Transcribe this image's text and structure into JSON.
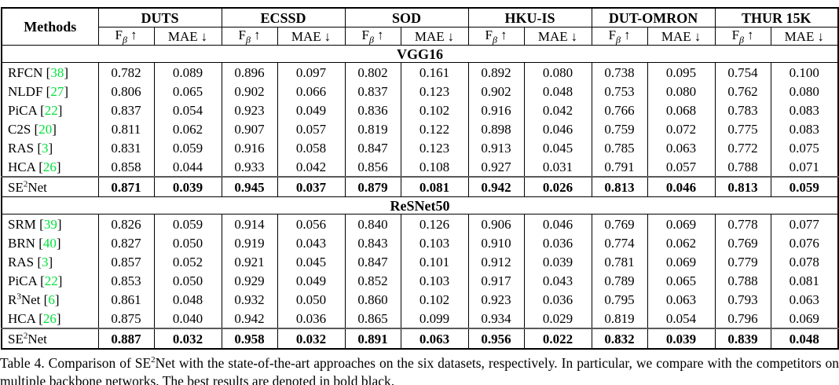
{
  "colors": {
    "citation_green": "#00e23c",
    "text": "#000000",
    "border": "#000000"
  },
  "table": {
    "methods_header": "Methods",
    "datasets": [
      "DUTS",
      "ECSSD",
      "SOD",
      "HKU-IS",
      "DUT-OMRON",
      "THUR 15K"
    ],
    "metric_f": {
      "base": "F",
      "sub": "β",
      "arrow": "↑"
    },
    "metric_mae": {
      "base": "MAE",
      "arrow": "↓"
    },
    "sections": [
      {
        "title": "VGG16",
        "rows": [
          {
            "method": {
              "pre": "RFCN",
              "sup": "",
              "post": "",
              "cite": "38"
            },
            "bold": false,
            "values": [
              "0.782",
              "0.089",
              "0.896",
              "0.097",
              "0.802",
              "0.161",
              "0.892",
              "0.080",
              "0.738",
              "0.095",
              "0.754",
              "0.100"
            ]
          },
          {
            "method": {
              "pre": "NLDF",
              "sup": "",
              "post": "",
              "cite": "27"
            },
            "bold": false,
            "values": [
              "0.806",
              "0.065",
              "0.902",
              "0.066",
              "0.837",
              "0.123",
              "0.902",
              "0.048",
              "0.753",
              "0.080",
              "0.762",
              "0.080"
            ]
          },
          {
            "method": {
              "pre": "PiCA",
              "sup": "",
              "post": "",
              "cite": "22"
            },
            "bold": false,
            "values": [
              "0.837",
              "0.054",
              "0.923",
              "0.049",
              "0.836",
              "0.102",
              "0.916",
              "0.042",
              "0.766",
              "0.068",
              "0.783",
              "0.083"
            ]
          },
          {
            "method": {
              "pre": "C2S",
              "sup": "",
              "post": "",
              "cite": "20"
            },
            "bold": false,
            "values": [
              "0.811",
              "0.062",
              "0.907",
              "0.057",
              "0.819",
              "0.122",
              "0.898",
              "0.046",
              "0.759",
              "0.072",
              "0.775",
              "0.083"
            ]
          },
          {
            "method": {
              "pre": "RAS",
              "sup": "",
              "post": "",
              "cite": "3"
            },
            "bold": false,
            "values": [
              "0.831",
              "0.059",
              "0.916",
              "0.058",
              "0.847",
              "0.123",
              "0.913",
              "0.045",
              "0.785",
              "0.063",
              "0.772",
              "0.075"
            ]
          },
          {
            "method": {
              "pre": "HCA",
              "sup": "",
              "post": "",
              "cite": "26"
            },
            "bold": false,
            "values": [
              "0.858",
              "0.044",
              "0.933",
              "0.042",
              "0.856",
              "0.108",
              "0.927",
              "0.031",
              "0.791",
              "0.057",
              "0.788",
              "0.071"
            ]
          },
          {
            "method": {
              "pre": "SE",
              "sup": "2",
              "post": "Net",
              "cite": ""
            },
            "bold": true,
            "values": [
              "0.871",
              "0.039",
              "0.945",
              "0.037",
              "0.879",
              "0.081",
              "0.942",
              "0.026",
              "0.813",
              "0.046",
              "0.813",
              "0.059"
            ]
          }
        ]
      },
      {
        "title": "ReSNet50",
        "rows": [
          {
            "method": {
              "pre": "SRM",
              "sup": "",
              "post": "",
              "cite": "39"
            },
            "bold": false,
            "values": [
              "0.826",
              "0.059",
              "0.914",
              "0.056",
              "0.840",
              "0.126",
              "0.906",
              "0.046",
              "0.769",
              "0.069",
              "0.778",
              "0.077"
            ]
          },
          {
            "method": {
              "pre": "BRN",
              "sup": "",
              "post": "",
              "cite": "40"
            },
            "bold": false,
            "values": [
              "0.827",
              "0.050",
              "0.919",
              "0.043",
              "0.843",
              "0.103",
              "0.910",
              "0.036",
              "0.774",
              "0.062",
              "0.769",
              "0.076"
            ]
          },
          {
            "method": {
              "pre": "RAS",
              "sup": "",
              "post": "",
              "cite": "3"
            },
            "bold": false,
            "values": [
              "0.857",
              "0.052",
              "0.921",
              "0.045",
              "0.847",
              "0.101",
              "0.912",
              "0.039",
              "0.781",
              "0.069",
              "0.779",
              "0.078"
            ]
          },
          {
            "method": {
              "pre": "PiCA",
              "sup": "",
              "post": "",
              "cite": "22"
            },
            "bold": false,
            "values": [
              "0.853",
              "0.050",
              "0.929",
              "0.049",
              "0.852",
              "0.103",
              "0.917",
              "0.043",
              "0.789",
              "0.065",
              "0.788",
              "0.081"
            ]
          },
          {
            "method": {
              "pre": "R",
              "sup": "3",
              "post": "Net",
              "cite": "6"
            },
            "bold": false,
            "values": [
              "0.861",
              "0.048",
              "0.932",
              "0.050",
              "0.860",
              "0.102",
              "0.923",
              "0.036",
              "0.795",
              "0.063",
              "0.793",
              "0.063"
            ]
          },
          {
            "method": {
              "pre": "HCA",
              "sup": "",
              "post": "",
              "cite": "26"
            },
            "bold": false,
            "values": [
              "0.875",
              "0.040",
              "0.942",
              "0.036",
              "0.865",
              "0.099",
              "0.934",
              "0.029",
              "0.819",
              "0.054",
              "0.796",
              "0.069"
            ]
          },
          {
            "method": {
              "pre": "SE",
              "sup": "2",
              "post": "Net",
              "cite": ""
            },
            "bold": true,
            "values": [
              "0.887",
              "0.032",
              "0.958",
              "0.032",
              "0.891",
              "0.063",
              "0.956",
              "0.022",
              "0.832",
              "0.039",
              "0.839",
              "0.048"
            ]
          }
        ]
      }
    ]
  },
  "caption": {
    "pre": "Table 4. Comparison of SE",
    "sup": "2",
    "post": "Net with the state-of-the-art approaches on the six datasets, respectively. In particular, we compare with the competitors on multiple backbone networks. The best results are denoted in bold black."
  }
}
